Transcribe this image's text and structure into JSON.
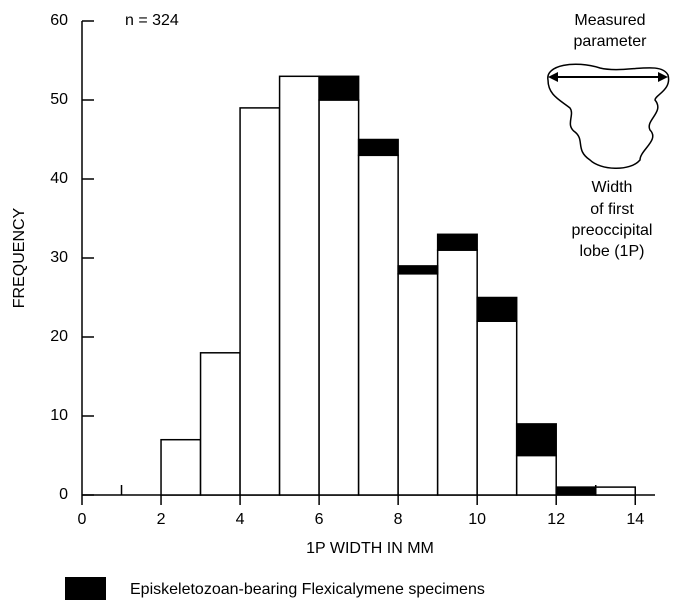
{
  "chart_data": {
    "type": "histogram",
    "bins": [
      2,
      3,
      4,
      5,
      6,
      7,
      8,
      9,
      10,
      11,
      12,
      13,
      14
    ],
    "series": [
      {
        "color": "#ffffff",
        "values": [
          7,
          18,
          49,
          53,
          50,
          43,
          28,
          31,
          22,
          5,
          0,
          1
        ]
      },
      {
        "name": "Episkeletozoan-bearing Flexicalymene specimens",
        "color": "#000000",
        "values": [
          0,
          0,
          0,
          0,
          3,
          2,
          1,
          2,
          3,
          4,
          1,
          0
        ]
      }
    ],
    "xlabel": "1P WIDTH IN MM",
    "ylabel": "FREQUENCY",
    "xlim": [
      0,
      14.5
    ],
    "ylim": [
      0,
      60
    ],
    "xticks": [
      0,
      2,
      4,
      6,
      8,
      10,
      12,
      14
    ],
    "xminor_ticks": [
      1,
      3,
      5,
      7,
      9,
      11,
      13
    ],
    "yticks": [
      0,
      10,
      20,
      30,
      40,
      50,
      60
    ],
    "annotations": [
      "n = 324",
      "Measured",
      "parameter",
      "Width",
      "of first",
      "preoccipital",
      "lobe (1P)"
    ]
  }
}
